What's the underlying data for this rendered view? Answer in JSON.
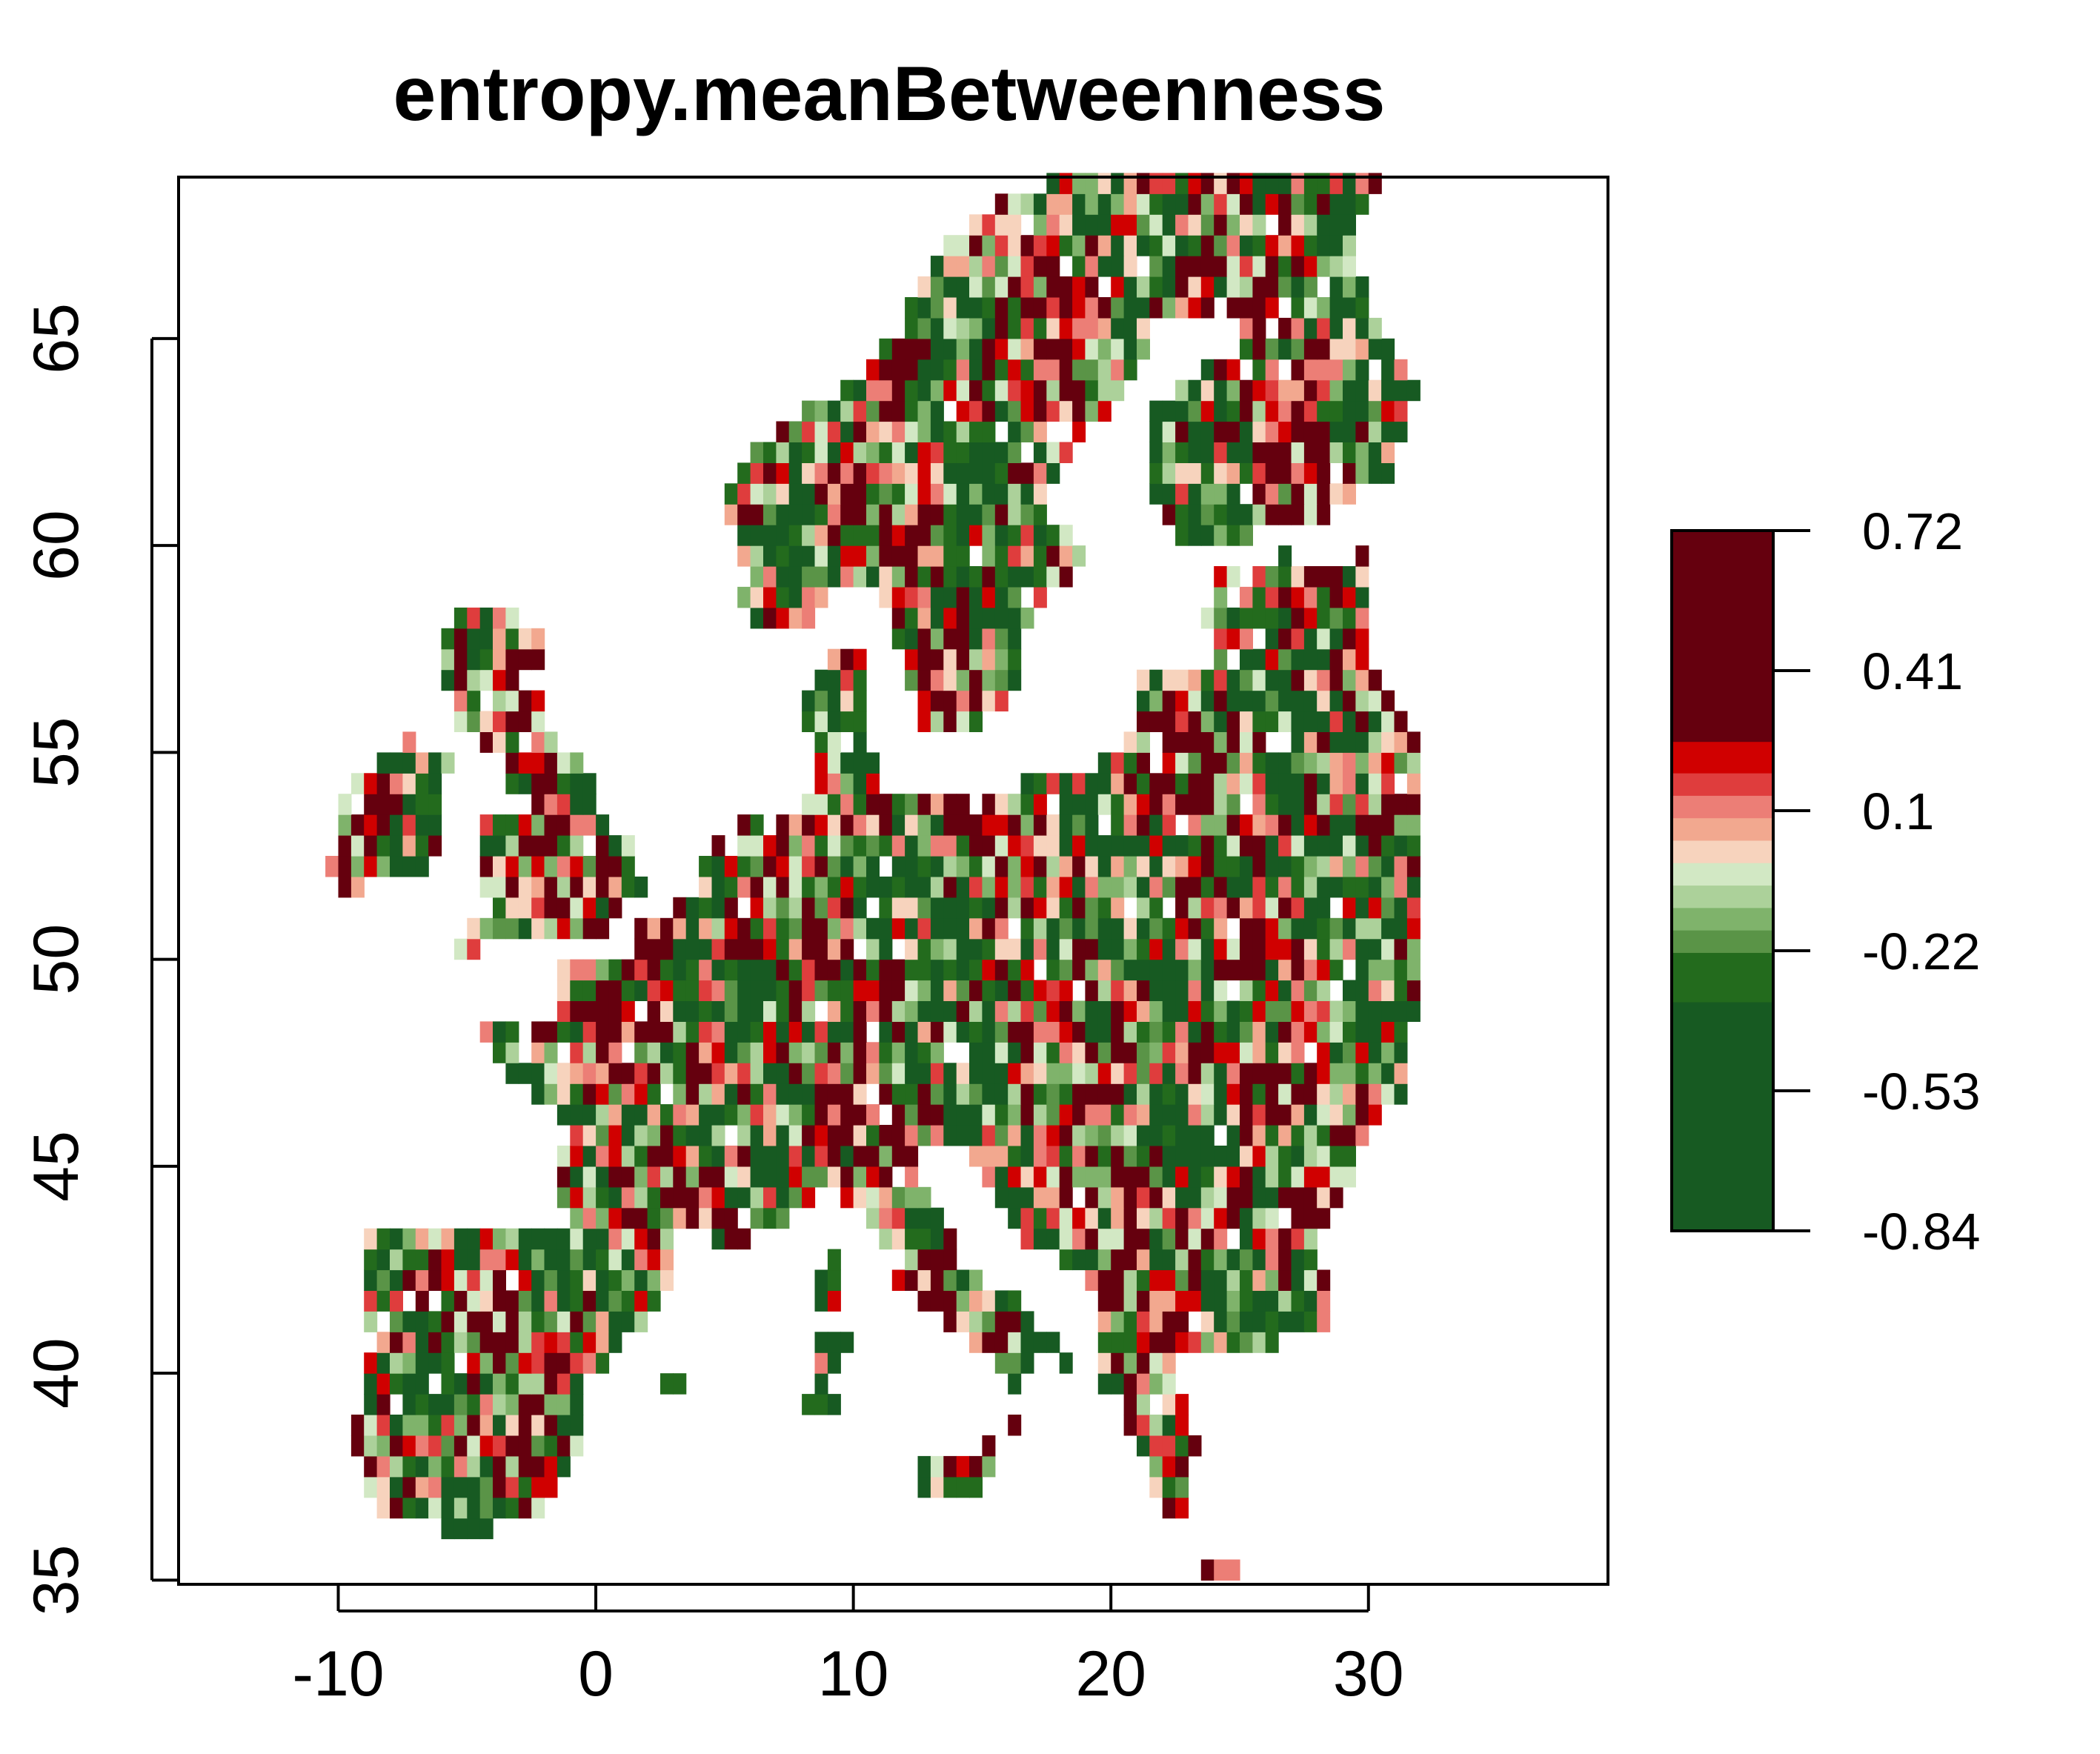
{
  "chart_data": {
    "type": "heatmap",
    "title": "entropy.meanBetweenness",
    "xlabel": "",
    "ylabel": "",
    "xlim": [
      -16.2,
      39.3
    ],
    "ylim": [
      34.9,
      68.9
    ],
    "x_ticks": [
      -10,
      0,
      10,
      20,
      30
    ],
    "y_ticks": [
      35,
      40,
      45,
      50,
      55,
      60,
      65
    ],
    "cell_size_deg": 0.5,
    "grid": false,
    "legend": {
      "position": "right",
      "ticks": [
        "0.72",
        "0.41",
        "0.1",
        "-0.22",
        "-0.53",
        "-0.84"
      ],
      "bands": [
        {
          "from": -0.84,
          "to": -0.33,
          "color": "#175a22"
        },
        {
          "from": -0.33,
          "to": -0.22,
          "color": "#236b1d"
        },
        {
          "from": -0.22,
          "to": -0.17,
          "color": "#5a9447"
        },
        {
          "from": -0.17,
          "to": -0.12,
          "color": "#7fb36b"
        },
        {
          "from": -0.12,
          "to": -0.07,
          "color": "#acd19a"
        },
        {
          "from": -0.07,
          "to": -0.02,
          "color": "#d2e8c4"
        },
        {
          "from": -0.02,
          "to": 0.03,
          "color": "#f7d3bd"
        },
        {
          "from": 0.03,
          "to": 0.08,
          "color": "#f2a88f"
        },
        {
          "from": 0.08,
          "to": 0.13,
          "color": "#ec7e76"
        },
        {
          "from": 0.13,
          "to": 0.18,
          "color": "#df3d3d"
        },
        {
          "from": 0.18,
          "to": 0.25,
          "color": "#d00000"
        },
        {
          "from": 0.25,
          "to": 0.72,
          "color": "#65000e"
        }
      ]
    },
    "value_range": [
      -0.84,
      0.72
    ],
    "region": "Europe",
    "colors": {
      "dark_red": "#65000e",
      "red": "#d00000",
      "light_pink": "#f7d3bd",
      "light_green": "#acd19a",
      "dark_green": "#175a22"
    }
  }
}
